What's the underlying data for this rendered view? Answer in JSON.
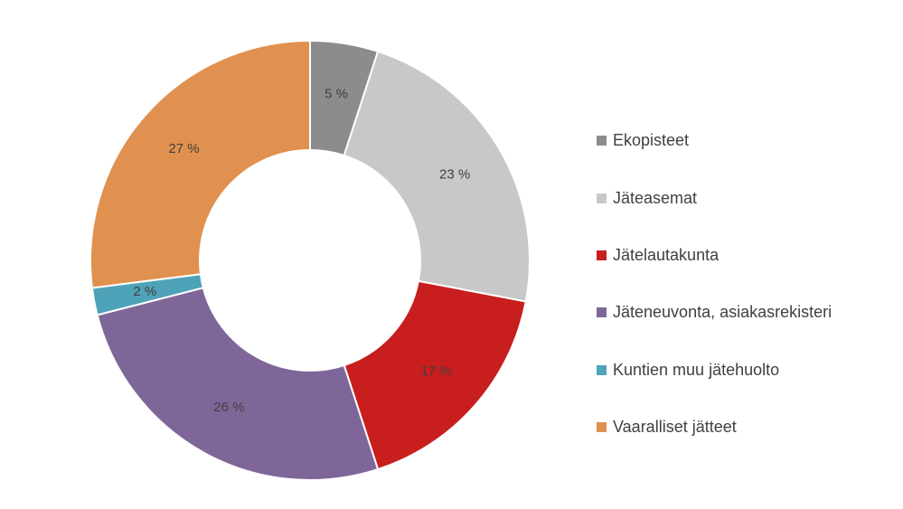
{
  "chart_data": {
    "type": "pie",
    "variant": "donut",
    "categories": [
      "Ekopisteet",
      "Jäteasemat",
      "Jätelautakunta",
      "Jäteneuvonta, asiakasrekisteri",
      "Kuntien muu jätehuolto",
      "Vaaralliset jätteet"
    ],
    "values": [
      5,
      23,
      17,
      26,
      2,
      27
    ],
    "labels": [
      "5 %",
      "23 %",
      "17 %",
      "26 %",
      "2 %",
      "27 %"
    ],
    "colors": [
      "#8c8c8c",
      "#c8c8c8",
      "#c81e1e",
      "#7f6699",
      "#4fa3b8",
      "#e0914f"
    ],
    "legend_position": "right"
  }
}
